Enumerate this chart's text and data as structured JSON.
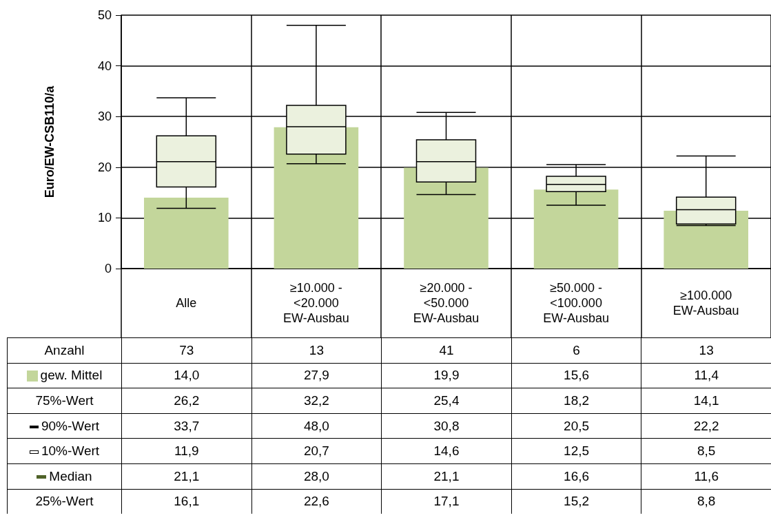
{
  "chart_data": {
    "type": "box",
    "ylabel": "Euro/EW-CSB110/a",
    "categories": [
      "Alle",
      "≥10.000 -\n<20.000\nEW-Ausbau",
      "≥20.000 -\n<50.000\nEW-Ausbau",
      "≥50.000 -\n<100.000\nEW-Ausbau",
      "≥100.000\nEW-Ausbau"
    ],
    "series": [
      {
        "name": "gew. Mittel",
        "type": "bar",
        "color": "#c3d69b",
        "values": [
          14.0,
          27.9,
          19.9,
          15.6,
          11.4
        ],
        "value_labels": [
          "14,0",
          "27,9",
          "19,9",
          "15,6",
          "11,4"
        ]
      },
      {
        "color": "#ebf1de",
        "boxes": [
          {
            "low": 11.9,
            "q1": 16.1,
            "median": 21.1,
            "q3": 26.2,
            "high": 33.7
          },
          {
            "low": 20.7,
            "q1": 22.6,
            "median": 28.0,
            "q3": 32.2,
            "high": 48.0
          },
          {
            "low": 14.6,
            "q1": 17.1,
            "median": 21.1,
            "q3": 25.4,
            "high": 30.8
          },
          {
            "low": 12.5,
            "q1": 15.2,
            "median": 16.6,
            "q3": 18.2,
            "high": 20.5
          },
          {
            "low": 8.5,
            "q1": 8.8,
            "median": 11.6,
            "q3": 14.1,
            "high": 22.2
          }
        ]
      }
    ],
    "ylim": [
      0,
      50
    ],
    "yticks": [
      0,
      10,
      20,
      30,
      40,
      50
    ],
    "grid": true,
    "annotations": [
      "Anzahl",
      "73",
      "13",
      "41",
      "6",
      "13",
      "75%-Wert",
      "26,2",
      "32,2",
      "25,4",
      "18,2",
      "14,1",
      "90%-Wert",
      "33,7",
      "48,0",
      "30,8",
      "20,5",
      "22,2",
      "10%-Wert",
      "11,9",
      "20,7",
      "14,6",
      "12,5",
      "8,5",
      "Median",
      "21,1",
      "28,0",
      "21,1",
      "16,6",
      "11,6",
      "25%-Wert",
      "16,1",
      "22,6",
      "17,1",
      "15,2",
      "8,8"
    ]
  }
}
